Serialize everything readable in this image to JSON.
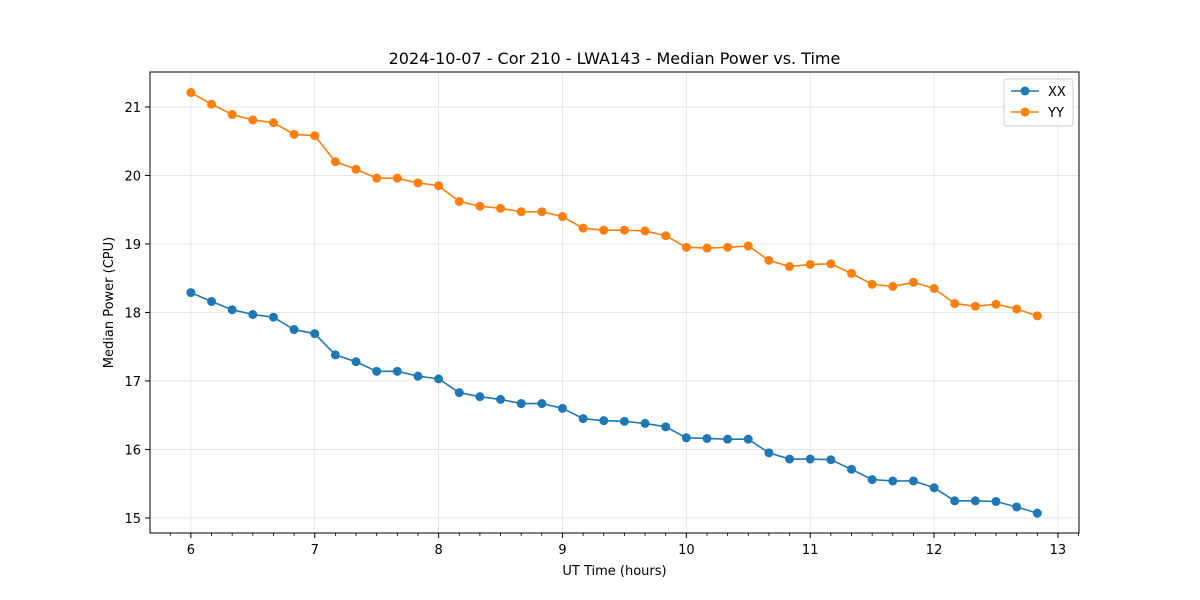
{
  "chart_data": {
    "type": "line",
    "title": "2024-10-07 - Cor 210 - LWA143 - Median Power vs. Time",
    "xlabel": "UT Time (hours)",
    "ylabel": "Median Power (CPU)",
    "xlim": [
      5.67,
      13.17
    ],
    "ylim": [
      14.78,
      21.51
    ],
    "xticks": [
      6,
      7,
      8,
      9,
      10,
      11,
      12,
      13
    ],
    "yticks": [
      15,
      16,
      17,
      18,
      19,
      20,
      21
    ],
    "xtick_labels": [
      "6",
      "7",
      "8",
      "9",
      "10",
      "11",
      "12",
      "13"
    ],
    "ytick_labels": [
      "15",
      "16",
      "17",
      "18",
      "19",
      "20",
      "21"
    ],
    "grid": true,
    "legend_position": "top-right",
    "x": [
      6.0,
      6.1667,
      6.3333,
      6.5,
      6.6667,
      6.8333,
      7.0,
      7.1667,
      7.3333,
      7.5,
      7.6667,
      7.8333,
      8.0,
      8.1667,
      8.3333,
      8.5,
      8.6667,
      8.8333,
      9.0,
      9.1667,
      9.3333,
      9.5,
      9.6667,
      9.8333,
      10.0,
      10.1667,
      10.3333,
      10.5,
      10.6667,
      10.8333,
      11.0,
      11.1667,
      11.3333,
      11.5,
      11.6667,
      11.8333,
      12.0,
      12.1667,
      12.3333,
      12.5,
      12.6667,
      12.8333
    ],
    "series": [
      {
        "name": "XX",
        "color": "#1f77b4",
        "values": [
          18.29,
          18.16,
          18.04,
          17.97,
          17.93,
          17.75,
          17.69,
          17.38,
          17.28,
          17.14,
          17.14,
          17.07,
          17.03,
          16.83,
          16.77,
          16.73,
          16.67,
          16.67,
          16.6,
          16.45,
          16.42,
          16.41,
          16.38,
          16.33,
          16.17,
          16.16,
          16.15,
          16.15,
          15.95,
          15.86,
          15.86,
          15.85,
          15.71,
          15.56,
          15.54,
          15.54,
          15.44,
          15.25,
          15.25,
          15.24,
          15.16,
          15.07
        ]
      },
      {
        "name": "YY",
        "color": "#ff7f0e",
        "values": [
          21.21,
          21.04,
          20.89,
          20.81,
          20.77,
          20.6,
          20.58,
          20.2,
          20.09,
          19.96,
          19.96,
          19.89,
          19.85,
          19.62,
          19.55,
          19.52,
          19.47,
          19.47,
          19.4,
          19.23,
          19.2,
          19.2,
          19.19,
          19.12,
          18.95,
          18.94,
          18.95,
          18.97,
          18.76,
          18.67,
          18.7,
          18.71,
          18.57,
          18.41,
          18.38,
          18.44,
          18.35,
          18.13,
          18.09,
          18.12,
          18.05,
          17.95
        ]
      }
    ]
  }
}
